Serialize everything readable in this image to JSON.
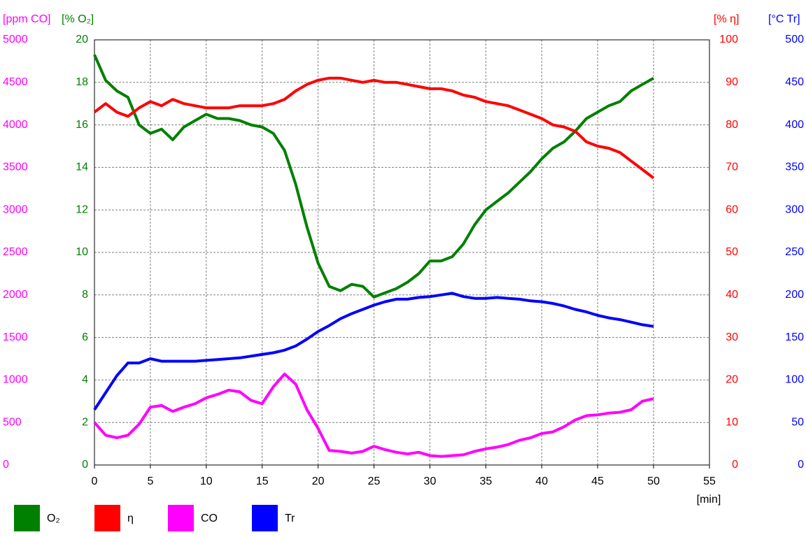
{
  "chart_data": {
    "type": "line",
    "x_label": "[min]",
    "y_label": "[% O₂]",
    "y2_label": "[% η]",
    "y3_label": "[ppm CO]",
    "y4_label": "[°C Tr]",
    "x": [
      0,
      1,
      2,
      3,
      4,
      5,
      6,
      7,
      8,
      9,
      10,
      11,
      12,
      13,
      14,
      15,
      16,
      17,
      18,
      19,
      20,
      21,
      22,
      23,
      24,
      25,
      26,
      27,
      28,
      29,
      30,
      31,
      32,
      33,
      34,
      35,
      36,
      37,
      38,
      39,
      40,
      41,
      42,
      43,
      44,
      45,
      46,
      47,
      48,
      49,
      50
    ],
    "series": [
      {
        "name": "O₂",
        "color": "#008000",
        "axis": "y",
        "values": [
          19.3,
          18.1,
          17.6,
          17.3,
          16.0,
          15.6,
          15.8,
          15.3,
          15.9,
          16.2,
          16.5,
          16.3,
          16.3,
          16.2,
          16.0,
          15.9,
          15.6,
          14.8,
          13.2,
          11.2,
          9.5,
          8.4,
          8.2,
          8.5,
          8.4,
          7.9,
          8.1,
          8.3,
          8.6,
          9.0,
          9.6,
          9.6,
          9.8,
          10.4,
          11.3,
          12.0,
          12.4,
          12.8,
          13.3,
          13.8,
          14.4,
          14.9,
          15.2,
          15.7,
          16.3,
          16.6,
          16.9,
          17.1,
          17.6,
          17.9,
          18.2
        ]
      },
      {
        "name": "η",
        "color": "#ff0000",
        "axis": "y2",
        "values": [
          83,
          85,
          83,
          82,
          84,
          85.5,
          84.5,
          86,
          85,
          84.5,
          84,
          84,
          84,
          84.5,
          84.5,
          84.5,
          85,
          86,
          88,
          89.5,
          90.5,
          91,
          91,
          90.5,
          90,
          90.5,
          90,
          90,
          89.5,
          89,
          88.5,
          88.5,
          88,
          87,
          86.5,
          85.5,
          85,
          84.5,
          83.5,
          82.5,
          81.5,
          80,
          79.5,
          78.5,
          76,
          75,
          74.5,
          73.5,
          71.5,
          69.5,
          67.5
        ]
      },
      {
        "name": "CO",
        "color": "#ff00ff",
        "axis": "y3",
        "values": [
          500,
          350,
          320,
          350,
          480,
          680,
          700,
          630,
          680,
          720,
          790,
          830,
          880,
          860,
          760,
          720,
          920,
          1070,
          950,
          650,
          430,
          170,
          160,
          140,
          160,
          220,
          180,
          150,
          130,
          150,
          110,
          100,
          110,
          120,
          160,
          190,
          210,
          240,
          290,
          320,
          370,
          390,
          450,
          530,
          580,
          590,
          610,
          620,
          650,
          750,
          780
        ]
      },
      {
        "name": "Tr",
        "color": "#0000ff",
        "axis": "y4",
        "values": [
          65,
          85,
          105,
          120,
          120,
          125,
          122,
          122,
          122,
          122,
          123,
          124,
          125,
          126,
          128,
          130,
          132,
          135,
          140,
          148,
          157,
          164,
          172,
          178,
          183,
          188,
          192,
          195,
          195,
          197,
          198,
          200,
          202,
          198,
          196,
          196,
          197,
          196,
          195,
          193,
          192,
          190,
          187,
          183,
          180,
          176,
          173,
          171,
          168,
          165,
          163
        ]
      }
    ],
    "xlim": [
      0,
      55
    ],
    "xticks": [
      0,
      5,
      10,
      15,
      20,
      25,
      30,
      35,
      40,
      45,
      50,
      55
    ],
    "ylim": [
      0,
      20
    ],
    "yticks": [
      0,
      2,
      4,
      6,
      8,
      10,
      12,
      14,
      16,
      18,
      20
    ],
    "y2lim": [
      0,
      100
    ],
    "y2ticks": [
      0,
      10,
      20,
      30,
      40,
      50,
      60,
      70,
      80,
      90,
      100
    ],
    "y3lim": [
      0,
      5000
    ],
    "y3ticks": [
      0,
      500,
      1000,
      1500,
      2000,
      2500,
      3000,
      3500,
      4000,
      4500,
      5000
    ],
    "y4lim": [
      0,
      500
    ],
    "y4ticks": [
      0,
      50,
      100,
      150,
      200,
      250,
      300,
      350,
      400,
      450,
      500
    ],
    "grid": true
  }
}
